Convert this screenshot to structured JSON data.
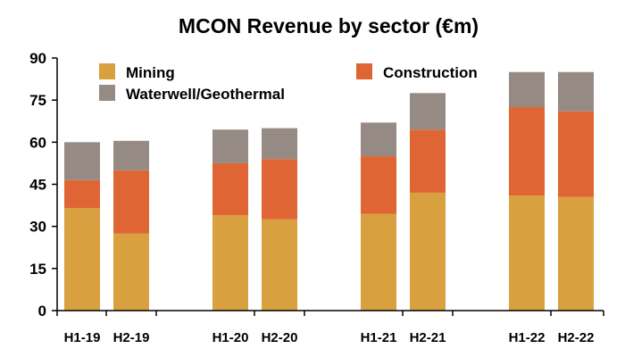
{
  "chart_data": {
    "type": "bar",
    "stacked": true,
    "title": "MCON Revenue by sector (€m)",
    "xlabel": "",
    "ylabel": "",
    "ylim": [
      0,
      90
    ],
    "yticks": [
      0,
      15,
      30,
      45,
      60,
      75,
      90
    ],
    "grid": false,
    "legend_position": "top",
    "categories": [
      "H1-19",
      "H2-19",
      "H1-20",
      "H2-20",
      "H1-21",
      "H2-21",
      "H1-22",
      "H2-22"
    ],
    "series": [
      {
        "name": "Mining",
        "color": "#D9A03F",
        "values": [
          36.5,
          27.5,
          34,
          32.5,
          34.5,
          42,
          41,
          40.5
        ]
      },
      {
        "name": "Construction",
        "color": "#DF6634",
        "values": [
          10,
          22.5,
          18.5,
          21.5,
          20.5,
          22.5,
          31.5,
          30.5
        ]
      },
      {
        "name": "Waterwell/Geothermal",
        "color": "#958A84",
        "values": [
          13.5,
          10.5,
          12,
          11,
          12,
          13,
          12.5,
          14
        ]
      }
    ]
  }
}
